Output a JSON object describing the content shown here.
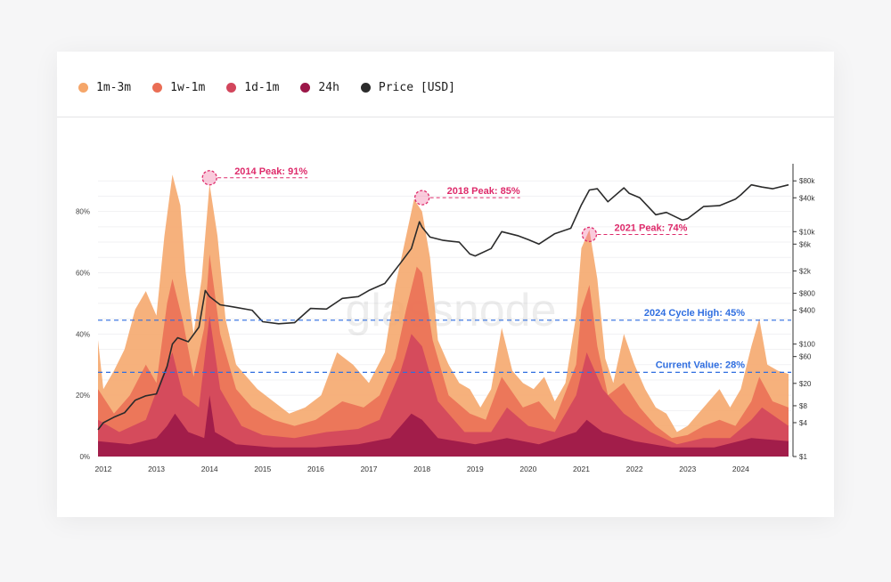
{
  "legend": [
    {
      "label": "1m-3m",
      "color": "#f5a66a"
    },
    {
      "label": "1w-1m",
      "color": "#ea6e55"
    },
    {
      "label": "1d-1m",
      "color": "#d2465c"
    },
    {
      "label": "24h",
      "color": "#9b1748"
    },
    {
      "label": "Price [USD]",
      "color": "#2b2b2b"
    }
  ],
  "watermark": "glassnode",
  "chart_data": {
    "type": "area",
    "x_ticks": [
      "2012",
      "2013",
      "2014",
      "2015",
      "2016",
      "2017",
      "2018",
      "2019",
      "2020",
      "2021",
      "2022",
      "2023",
      "2024"
    ],
    "x_range": [
      2011.9,
      2024.95
    ],
    "y_left_ticks": [
      "0%",
      "20%",
      "40%",
      "60%",
      "80%"
    ],
    "y_left_values": [
      0,
      20,
      40,
      60,
      80
    ],
    "y_left_range": [
      0,
      95
    ],
    "y_right_ticks": [
      "$1",
      "$4",
      "$8",
      "$20",
      "$60",
      "$100",
      "$400",
      "$800",
      "$2k",
      "$6k",
      "$10k",
      "$40k",
      "$80k"
    ],
    "y_right_values": [
      1,
      4,
      8,
      20,
      60,
      100,
      400,
      800,
      2000,
      6000,
      10000,
      40000,
      80000
    ],
    "y_right_range": [
      1,
      150000
    ],
    "y_right_scale": "log",
    "series": [
      {
        "name": "1m-3m",
        "color": "#f5a66a",
        "kind": "area",
        "x": [
          2011.9,
          2012.0,
          2012.2,
          2012.4,
          2012.6,
          2012.8,
          2013.0,
          2013.15,
          2013.3,
          2013.45,
          2013.55,
          2013.7,
          2013.85,
          2014.0,
          2014.15,
          2014.3,
          2014.5,
          2014.7,
          2014.9,
          2015.2,
          2015.5,
          2015.8,
          2016.1,
          2016.4,
          2016.7,
          2017.0,
          2017.3,
          2017.5,
          2017.7,
          2017.85,
          2018.0,
          2018.15,
          2018.3,
          2018.5,
          2018.7,
          2018.9,
          2019.1,
          2019.3,
          2019.5,
          2019.7,
          2019.9,
          2020.1,
          2020.3,
          2020.5,
          2020.7,
          2020.9,
          2021.0,
          2021.15,
          2021.3,
          2021.45,
          2021.6,
          2021.8,
          2022.0,
          2022.2,
          2022.4,
          2022.6,
          2022.8,
          2023.0,
          2023.2,
          2023.4,
          2023.6,
          2023.8,
          2024.0,
          2024.2,
          2024.35,
          2024.5,
          2024.7,
          2024.9
        ],
        "values": [
          38,
          22,
          28,
          35,
          48,
          54,
          46,
          72,
          92,
          82,
          60,
          40,
          58,
          89,
          72,
          45,
          30,
          26,
          22,
          18,
          14,
          16,
          20,
          34,
          30,
          24,
          34,
          56,
          72,
          84,
          80,
          65,
          38,
          30,
          24,
          22,
          16,
          22,
          42,
          28,
          24,
          22,
          26,
          18,
          24,
          46,
          68,
          74,
          58,
          32,
          24,
          40,
          30,
          22,
          16,
          14,
          8,
          10,
          14,
          18,
          22,
          16,
          22,
          36,
          45,
          30,
          28,
          27
        ]
      },
      {
        "name": "1w-1m",
        "color": "#ea6e55",
        "kind": "area",
        "x": [
          2011.9,
          2012.2,
          2012.5,
          2012.8,
          2013.0,
          2013.2,
          2013.3,
          2013.5,
          2013.7,
          2013.9,
          2014.0,
          2014.2,
          2014.5,
          2014.8,
          2015.2,
          2015.6,
          2016.0,
          2016.5,
          2016.9,
          2017.2,
          2017.5,
          2017.7,
          2017.9,
          2018.0,
          2018.2,
          2018.5,
          2018.9,
          2019.2,
          2019.5,
          2019.9,
          2020.2,
          2020.5,
          2020.9,
          2021.0,
          2021.15,
          2021.3,
          2021.5,
          2021.8,
          2022.1,
          2022.4,
          2022.7,
          2023.0,
          2023.3,
          2023.6,
          2023.9,
          2024.2,
          2024.35,
          2024.6,
          2024.9
        ],
        "values": [
          22,
          14,
          20,
          30,
          24,
          50,
          58,
          44,
          26,
          42,
          66,
          40,
          22,
          16,
          12,
          10,
          12,
          18,
          16,
          20,
          32,
          48,
          62,
          60,
          38,
          20,
          14,
          12,
          26,
          16,
          18,
          12,
          30,
          48,
          56,
          36,
          20,
          24,
          16,
          10,
          6,
          7,
          10,
          12,
          10,
          18,
          26,
          18,
          16
        ]
      },
      {
        "name": "1d-1m",
        "color": "#d2465c",
        "kind": "area",
        "x": [
          2011.9,
          2012.3,
          2012.8,
          2013.1,
          2013.3,
          2013.5,
          2013.8,
          2014.0,
          2014.2,
          2014.6,
          2015.0,
          2015.6,
          2016.2,
          2016.8,
          2017.2,
          2017.6,
          2017.8,
          2018.0,
          2018.3,
          2018.8,
          2019.3,
          2019.6,
          2020.0,
          2020.5,
          2020.9,
          2021.1,
          2021.4,
          2021.8,
          2022.3,
          2022.8,
          2023.3,
          2023.8,
          2024.2,
          2024.4,
          2024.9
        ],
        "values": [
          12,
          8,
          12,
          26,
          34,
          20,
          16,
          46,
          22,
          10,
          7,
          6,
          8,
          9,
          12,
          28,
          40,
          36,
          18,
          8,
          8,
          16,
          10,
          8,
          20,
          34,
          22,
          14,
          8,
          4,
          6,
          6,
          12,
          16,
          10
        ]
      },
      {
        "name": "24h",
        "color": "#9b1748",
        "kind": "area",
        "x": [
          2011.9,
          2012.5,
          2013.0,
          2013.2,
          2013.35,
          2013.6,
          2013.9,
          2014.0,
          2014.1,
          2014.5,
          2015.2,
          2016.0,
          2016.8,
          2017.4,
          2017.8,
          2018.0,
          2018.3,
          2019.0,
          2019.6,
          2020.2,
          2020.9,
          2021.1,
          2021.4,
          2022.0,
          2022.7,
          2023.5,
          2024.2,
          2024.9
        ],
        "values": [
          5,
          4,
          6,
          10,
          14,
          8,
          6,
          20,
          8,
          4,
          3,
          3,
          4,
          6,
          14,
          12,
          6,
          4,
          6,
          4,
          8,
          12,
          8,
          5,
          3,
          3,
          6,
          5
        ]
      },
      {
        "name": "Price [USD]",
        "color": "#2b2b2b",
        "kind": "line",
        "axis": "right",
        "x": [
          2011.9,
          2012.0,
          2012.2,
          2012.4,
          2012.6,
          2012.8,
          2013.0,
          2013.2,
          2013.3,
          2013.4,
          2013.6,
          2013.8,
          2013.92,
          2014.0,
          2014.2,
          2014.5,
          2014.8,
          2015.0,
          2015.3,
          2015.6,
          2015.9,
          2016.2,
          2016.5,
          2016.8,
          2017.0,
          2017.3,
          2017.6,
          2017.8,
          2017.95,
          2018.0,
          2018.15,
          2018.4,
          2018.7,
          2018.9,
          2019.0,
          2019.3,
          2019.5,
          2019.8,
          2020.0,
          2020.2,
          2020.5,
          2020.8,
          2021.0,
          2021.15,
          2021.3,
          2021.5,
          2021.8,
          2021.9,
          2022.1,
          2022.4,
          2022.6,
          2022.9,
          2023.0,
          2023.3,
          2023.6,
          2023.9,
          2024.0,
          2024.2,
          2024.4,
          2024.6,
          2024.9
        ],
        "values": [
          3,
          4,
          5,
          6,
          10,
          12,
          13,
          40,
          100,
          130,
          110,
          200,
          900,
          700,
          500,
          450,
          400,
          250,
          230,
          240,
          430,
          420,
          650,
          700,
          900,
          1200,
          2800,
          5000,
          15000,
          12000,
          8000,
          7000,
          6500,
          4000,
          3700,
          5000,
          10000,
          8500,
          7200,
          6000,
          9200,
          11500,
          30000,
          55000,
          58000,
          34000,
          60000,
          48000,
          40000,
          20000,
          22000,
          16000,
          17000,
          28000,
          29000,
          38000,
          45000,
          68000,
          62000,
          58000,
          68000
        ]
      }
    ],
    "annotations": [
      {
        "text": "2014 Peak: 91%",
        "x": 2014.0,
        "y": 91,
        "color": "#de2b6b"
      },
      {
        "text": "2018 Peak: 85%",
        "x": 2018.0,
        "y": 84.5,
        "color": "#de2b6b"
      },
      {
        "text": "2021 Peak: 74%",
        "x": 2021.15,
        "y": 72.5,
        "color": "#de2b6b"
      }
    ],
    "reference_lines": [
      {
        "text": "2024 Cycle High: 45%",
        "y": 44.5,
        "color": "#2f6ee0"
      },
      {
        "text": "Current Value: 28%",
        "y": 27.5,
        "color": "#2f6ee0"
      }
    ]
  }
}
